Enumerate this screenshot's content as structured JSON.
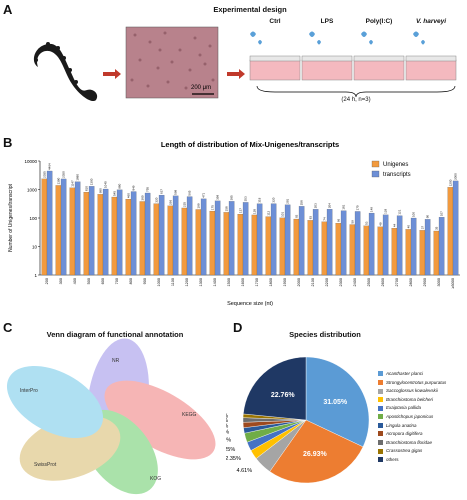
{
  "panels": {
    "A": {
      "letter": "A",
      "title": "Experimental design",
      "scale_bar": "200 μm",
      "conditions": [
        "Ctrl",
        "LPS",
        "Poly(I:C)",
        "V. harveyi"
      ],
      "note": "(24 h, n=3)"
    },
    "B": {
      "letter": "B"
    },
    "C": {
      "letter": "C",
      "title": "Venn diagram of functional annotation",
      "sets": [
        "NR",
        "KOG",
        "KEGG",
        "SwissProt",
        "InterPro"
      ]
    },
    "D": {
      "letter": "D",
      "title": "Species distribution"
    }
  },
  "colors": {
    "unigenes": "#f29a3e",
    "transcripts": "#6d8fd6",
    "arrow": "#c0392b"
  },
  "chart_data": [
    {
      "type": "bar",
      "title": "Length of distribution of Mix-Unigenes/transcripts",
      "xlabel": "Sequence size (nt)",
      "ylabel": "Number of Unigenes/transcript",
      "yscale": "log",
      "ylim": [
        1,
        10000
      ],
      "yticks": [
        "1",
        "10",
        "100",
        "1000",
        "10000"
      ],
      "categories": [
        "200",
        "300",
        "400",
        "500",
        "600",
        "700",
        "800",
        "900",
        "1000",
        "1100",
        "1200",
        "1300",
        "1400",
        "1500",
        "1600",
        "1700",
        "1800",
        "1900",
        "2000",
        "2100",
        "2200",
        "2300",
        "2400",
        "2500",
        "2600",
        "2700",
        "2800",
        "2900",
        "3000",
        "≥3000"
      ],
      "legend": "top-right",
      "series": [
        {
          "name": "Unigenes",
          "values": [
            2355,
            1390,
            1147,
            810,
            680,
            545,
            460,
            380,
            320,
            266,
            225,
            199,
            175,
            158,
            137,
            128,
            112,
            101,
            92,
            83,
            74,
            66,
            59,
            53,
            49,
            44,
            40,
            37,
            35,
            1200
          ]
        },
        {
          "name": "transcripts",
          "values": [
            4464,
            2350,
            1880,
            1300,
            1040,
            980,
            849,
            755,
            637,
            599,
            565,
            471,
            399,
            385,
            353,
            318,
            320,
            291,
            258,
            203,
            204,
            181,
            170,
            149,
            129,
            121,
            100,
            90,
            107,
            2000
          ]
        }
      ]
    },
    {
      "type": "pie",
      "labels": [
        "31.05%",
        "26.93%",
        "4.61%",
        "2.35%",
        "2.25%",
        "2.30%",
        "1.35%",
        "1.35%",
        "1.15%",
        "0.91%",
        "22.76%"
      ],
      "legend_entries": [
        "Acanthaster planci",
        "Strongylocentrotus purpuratus",
        "Saccoglossus kowalevskii",
        "Branchiostoma belcheri",
        "Exaiptasia pallida",
        "Apostichopus japonicus",
        "Lingula anatina",
        "Acropora digitifera",
        "Branchiostoma floridae",
        "Crassostrea gigas",
        "others"
      ],
      "values": [
        31.05,
        26.93,
        4.61,
        2.35,
        2.25,
        2.3,
        1.35,
        1.35,
        1.15,
        0.91,
        22.76
      ],
      "slice_colors": [
        "#5b9bd5",
        "#ed7d31",
        "#a5a5a5",
        "#ffc000",
        "#4472c4",
        "#70ad47",
        "#2a5a9a",
        "#9e4a1e",
        "#6d6d6d",
        "#9a7400",
        "#1f3864"
      ],
      "legend": "right"
    }
  ]
}
